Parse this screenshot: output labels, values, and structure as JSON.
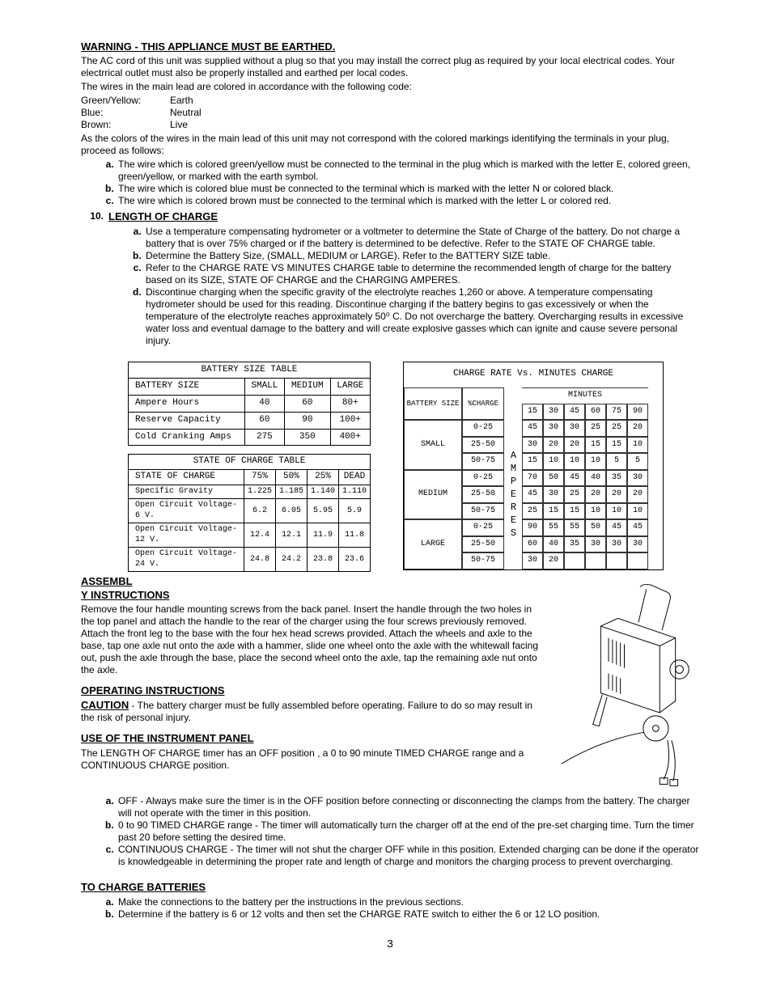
{
  "warning": {
    "heading": "WARNING - THIS APPLIANCE MUST BE EARTHED.",
    "p1": "The AC cord of this unit was supplied without a plug so that you may install the correct plug as required by your local electrical codes.  Your electrrical outlet must also be properly installed and earthed per local codes.",
    "p2": "The wires in the main lead are colored in accordance with the following code:",
    "wires": [
      [
        "Green/Yellow:",
        "Earth"
      ],
      [
        "Blue:",
        "Neutral"
      ],
      [
        "Brown:",
        "Live"
      ]
    ],
    "p3": "As the colors of the wires in the main lead of this unit may not correspond with the colored markings identifying the terminals in your plug, proceed as follows:",
    "items": [
      "The wire which is colored green/yellow must be connected to the terminal in the plug which is marked with the letter E, colored green, green/yellow, or marked with the earth symbol.",
      "The wire which is colored blue must be connected to the terminal which is marked with the letter N or colored black.",
      "The wire which is colored brown must be connected to the terminal which is marked with the letter L or colored red."
    ]
  },
  "length_of_charge": {
    "num": "10.",
    "heading": "LENGTH OF CHARGE",
    "items": [
      "Use a temperature compensating hydrometer or a voltmeter to determine the State of Charge of the battery.  Do not charge a battery that is over 75% charged or if the battery is determined to be defective.  Refer to the STATE OF CHARGE table.",
      "Determine the Battery Size, (SMALL, MEDIUM or LARGE).  Refer to the BATTERY SIZE table.",
      "Refer to the CHARGE RATE VS MINUTES CHARGE table to determine the recommended length of charge for the battery based on its SIZE, STATE OF CHARGE and the CHARGING AMPERES.",
      "Discontinue charging when the specific gravity of the electrolyte reaches 1,260 or above.  A temperature compensating hydrometer should be used for this reading.  Discontinue charging if the battery begins to gas excessively or when the temperature of the electrolyte reaches approximately 50⁰ C.  Do not overcharge the  battery.  Overcharging results in excessive water loss and eventual damage to the battery and will create explosive gasses which can ignite and cause severe personal injury."
    ]
  },
  "battery_size_table": {
    "title": "BATTERY SIZE TABLE",
    "columns": [
      "BATTERY SIZE",
      "SMALL",
      "MEDIUM",
      "LARGE"
    ],
    "rows": [
      [
        "Ampere Hours",
        "40",
        "60",
        "80+"
      ],
      [
        "Reserve Capacity",
        "60",
        "90",
        "100+"
      ],
      [
        "Cold Cranking Amps",
        "275",
        "350",
        "400+"
      ]
    ]
  },
  "state_of_charge_table": {
    "title": "STATE OF CHARGE TABLE",
    "columns": [
      "STATE OF CHARGE",
      "75%",
      "50%",
      "25%",
      "DEAD"
    ],
    "rows": [
      [
        "Specific Gravity",
        "1.225",
        "1.185",
        "1.140",
        "1.110"
      ],
      [
        "Open Circuit Voltage-6 V.",
        "6.2",
        "6.05",
        "5.95",
        "5.9"
      ],
      [
        "Open Circuit Voltage-12 V.",
        "12.4",
        "12.1",
        "11.9",
        "11.8"
      ],
      [
        "Open Circuit Voltage-24 V.",
        "24.8",
        "24.2",
        "23.8",
        "23.6"
      ]
    ]
  },
  "charge_rate_table": {
    "title": "CHARGE RATE Vs. MINUTES CHARGE",
    "col_label_1": "BATTERY SIZE",
    "col_label_2": "%CHARGE",
    "minutes_label": "MINUTES",
    "minutes": [
      "15",
      "30",
      "45",
      "60",
      "75",
      "90"
    ],
    "amp_label": "AMPERES",
    "groups": [
      {
        "size": "SMALL",
        "ranges": [
          {
            "r": "0-25",
            "v": [
              "45",
              "30",
              "30",
              "25",
              "25",
              "20"
            ]
          },
          {
            "r": "25-50",
            "v": [
              "30",
              "20",
              "20",
              "15",
              "15",
              "10"
            ]
          },
          {
            "r": "50-75",
            "v": [
              "15",
              "10",
              "10",
              "10",
              "5",
              "5"
            ]
          }
        ]
      },
      {
        "size": "MEDIUM",
        "ranges": [
          {
            "r": "0-25",
            "v": [
              "70",
              "50",
              "45",
              "40",
              "35",
              "30"
            ]
          },
          {
            "r": "25-50",
            "v": [
              "45",
              "30",
              "25",
              "20",
              "20",
              "20"
            ]
          },
          {
            "r": "50-75",
            "v": [
              "25",
              "15",
              "15",
              "10",
              "10",
              "10"
            ]
          }
        ]
      },
      {
        "size": "LARGE",
        "ranges": [
          {
            "r": "0-25",
            "v": [
              "90",
              "55",
              "55",
              "50",
              "45",
              "45"
            ]
          },
          {
            "r": "25-50",
            "v": [
              "60",
              "40",
              "35",
              "30",
              "30",
              "30"
            ]
          },
          {
            "r": "50-75",
            "v": [
              "30",
              "20",
              "",
              "",
              "",
              " "
            ]
          }
        ]
      }
    ]
  },
  "assembly": {
    "heading1": "ASSEMBL",
    "heading2": "Y INSTRUCTIONS",
    "body": "Remove the four handle mounting screws from the back panel.  Insert the handle through the two holes in the top panel and attach the handle to the rear of the charger using the four screws previously removed.  Attach the front leg to the base with the four hex head screws provided.  Attach the wheels and axle to the base, tap one axle nut onto the axle with a hammer, slide one wheel onto the axle with the whitewall facing out, push the axle through the base, place the second wheel onto the axle, tap the remaining axle nut onto the axle."
  },
  "operating": {
    "heading": "OPERATING INSTRUCTIONS",
    "caution_label": "CAUTION",
    "caution_body": " - The battery charger must be fully assembled before operating.  Failure to do so may result in the risk of personal injury."
  },
  "instrument": {
    "heading": "USE OF THE INSTRUMENT PANEL",
    "body": "The LENGTH OF CHARGE timer has an OFF position , a 0 to 90 minute TIMED CHARGE range and a CONTINUOUS CHARGE position.",
    "items": [
      "OFF - Always make sure the timer is in the OFF position before connecting or disconnecting the clamps from the battery.  The charger will not operate with the timer in this position.",
      "0 to 90 TIMED CHARGE range - The timer will automatically turn the charger off at the end of the pre-set charging time.  Turn the timer past 20 before setting the desired time.",
      "CONTINUOUS CHARGE - The timer will not shut the charger OFF while in this position.  Extended charging can be done if the operator is knowledgeable in determining the proper rate and length of charge and monitors the charging process to prevent overcharging."
    ]
  },
  "to_charge": {
    "heading": "TO CHARGE BATTERIES",
    "items": [
      "Make the connections to the battery per the instructions in the previous sections.",
      "Determine if the battery is 6 or 12 volts and then set the CHARGE RATE switch to either the 6 or 12 LO position."
    ]
  },
  "page": "3"
}
